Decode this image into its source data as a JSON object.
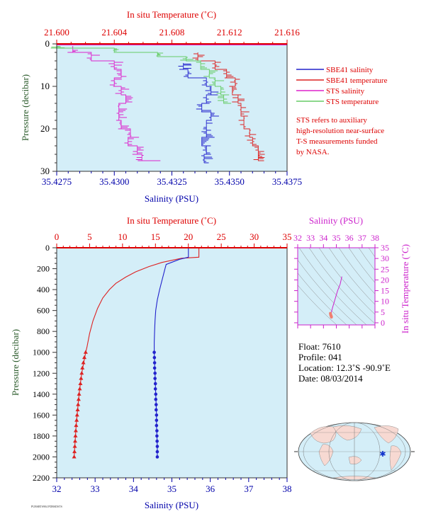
{
  "colors": {
    "plot_bg": "#d4eef8",
    "sbe_salinity": "#2222cc",
    "sbe_temperature": "#dd2222",
    "sts_salinity": "#dd22cc",
    "sts_temperature": "#66cc66",
    "temp_axis": "#dd0000",
    "sal_axis": "#0000aa",
    "pressure_axis": "#2a5a2a",
    "ts_axis": "#cc22cc",
    "annotation": "#dd0000"
  },
  "top_chart": {
    "top_axis_label": "In situ Temperature (˚C)",
    "bottom_axis_label": "Salinity (PSU)",
    "left_axis_label": "Pressure (decibar)",
    "temp_ticks": [
      "21.600",
      "21.604",
      "21.608",
      "21.612",
      "21.616"
    ],
    "sal_ticks": [
      "35.4275",
      "35.4300",
      "35.4325",
      "35.4350",
      "35.4375"
    ],
    "pressure_ticks": [
      "0",
      "10",
      "20",
      "30"
    ],
    "legend": [
      {
        "label": "SBE41 salinity",
        "color": "#2222cc"
      },
      {
        "label": "SBE41 temperature",
        "color": "#dd2222"
      },
      {
        "label": "STS salinity",
        "color": "#dd22cc"
      },
      {
        "label": "STS temperature",
        "color": "#66cc66"
      }
    ],
    "note": [
      "STS refers to auxiliary",
      "high-resolution near-surface",
      "T-S measurements funded",
      "by NASA."
    ]
  },
  "main_chart": {
    "top_axis_label": "In situ Temperature (˚C)",
    "bottom_axis_label": "Salinity (PSU)",
    "left_axis_label": "Pressure (decibar)",
    "temp_ticks": [
      "0",
      "5",
      "10",
      "15",
      "20",
      "25",
      "30",
      "35"
    ],
    "sal_ticks": [
      "32",
      "33",
      "34",
      "35",
      "36",
      "37",
      "38"
    ],
    "pressure_ticks": [
      "0",
      "200",
      "400",
      "600",
      "800",
      "1000",
      "1200",
      "1400",
      "1600",
      "1800",
      "2000",
      "2200"
    ],
    "footer_code": "PUBSRTS904 PDBSDSTS"
  },
  "ts_chart": {
    "top_axis_label": "Salinity (PSU)",
    "right_axis_label": "In situ Temperature (˚C)",
    "sal_ticks": [
      "32",
      "33",
      "34",
      "35",
      "36",
      "37",
      "38"
    ],
    "temp_ticks": [
      "0",
      "5",
      "10",
      "15",
      "20",
      "25",
      "30",
      "35"
    ]
  },
  "info": {
    "float": "Float:  7610",
    "profile": "Profile:  041",
    "location": "Location:  12.3˚S  -90.9˚E",
    "date": "Date:  08/03/2014"
  },
  "chart_data": [
    {
      "type": "line",
      "title": "",
      "xlabel": "Salinity (PSU)",
      "x2label": "In situ Temperature (˚C)",
      "ylabel": "Pressure (decibar)",
      "xlim": [
        35.4275,
        35.4375
      ],
      "x2lim": [
        21.6,
        21.616
      ],
      "ylim": [
        30,
        0
      ],
      "legend": "right",
      "series": [
        {
          "name": "SBE41 salinity",
          "axis": "salinity",
          "points": [
            [
              35.433,
              4.5
            ],
            [
              35.4332,
              6
            ],
            [
              35.434,
              8
            ],
            [
              35.4342,
              10
            ],
            [
              35.434,
              12
            ],
            [
              35.4338,
              14
            ],
            [
              35.4342,
              16
            ],
            [
              35.434,
              18
            ],
            [
              35.434,
              20
            ],
            [
              35.4338,
              22
            ],
            [
              35.434,
              24
            ],
            [
              35.4339,
              26
            ],
            [
              35.4341,
              28
            ]
          ]
        },
        {
          "name": "SBE41 temperature",
          "axis": "temperature",
          "points": [
            [
              21.6098,
              2
            ],
            [
              21.611,
              4
            ],
            [
              21.6118,
              6
            ],
            [
              21.6124,
              8
            ],
            [
              21.6122,
              10
            ],
            [
              21.6126,
              12
            ],
            [
              21.6128,
              14
            ],
            [
              21.613,
              17
            ],
            [
              21.6134,
              20
            ],
            [
              21.6136,
              22
            ],
            [
              21.614,
              24
            ],
            [
              21.614,
              26
            ],
            [
              21.6144,
              27.5
            ]
          ]
        },
        {
          "name": "STS salinity",
          "axis": "salinity",
          "points": [
            [
              35.4282,
              0.5
            ],
            [
              35.429,
              2
            ],
            [
              35.43,
              4
            ],
            [
              35.4303,
              6
            ],
            [
              35.43,
              8
            ],
            [
              35.4303,
              10
            ],
            [
              35.4305,
              12
            ],
            [
              35.4302,
              14
            ],
            [
              35.4302,
              16
            ],
            [
              35.4303,
              18
            ],
            [
              35.4307,
              20
            ],
            [
              35.4306,
              22
            ],
            [
              35.431,
              24
            ],
            [
              35.4312,
              26
            ],
            [
              35.432,
              27.5
            ]
          ]
        },
        {
          "name": "STS temperature",
          "axis": "temperature",
          "points": [
            [
              21.6,
              0.5
            ],
            [
              21.604,
              1
            ],
            [
              21.607,
              2
            ],
            [
              21.609,
              3
            ],
            [
              21.61,
              4
            ],
            [
              21.6106,
              6
            ],
            [
              21.611,
              8
            ],
            [
              21.6114,
              10
            ],
            [
              21.6116,
              12
            ],
            [
              21.6118,
              14
            ]
          ]
        }
      ]
    },
    {
      "type": "line",
      "title": "",
      "xlabel": "Salinity (PSU)",
      "x2label": "In situ Temperature (˚C)",
      "ylabel": "Pressure (decibar)",
      "xlim": [
        32,
        38
      ],
      "x2lim": [
        0,
        35
      ],
      "ylim": [
        2200,
        0
      ],
      "series": [
        {
          "axis": "temperature",
          "marker": "triangle",
          "points": [
            [
              21.6,
              0
            ],
            [
              21.6,
              90
            ],
            [
              19,
              100
            ],
            [
              16,
              140
            ],
            [
              14,
              180
            ],
            [
              12,
              230
            ],
            [
              10.5,
              280
            ],
            [
              9,
              340
            ],
            [
              8,
              400
            ],
            [
              7,
              480
            ],
            [
              6.2,
              580
            ],
            [
              5.5,
              700
            ],
            [
              5,
              820
            ],
            [
              4.6,
              950
            ],
            [
              4.4,
              1000
            ],
            [
              4.1,
              1100
            ],
            [
              3.8,
              1200
            ],
            [
              3.6,
              1300
            ],
            [
              3.4,
              1400
            ],
            [
              3.25,
              1500
            ],
            [
              3.1,
              1600
            ],
            [
              2.95,
              1700
            ],
            [
              2.85,
              1800
            ],
            [
              2.75,
              1900
            ],
            [
              2.65,
              2000
            ]
          ],
          "marker_points": [
            [
              4.4,
              1000
            ],
            [
              4.2,
              1050
            ],
            [
              4.05,
              1100
            ],
            [
              3.9,
              1150
            ],
            [
              3.8,
              1200
            ],
            [
              3.7,
              1250
            ],
            [
              3.6,
              1300
            ],
            [
              3.5,
              1350
            ],
            [
              3.4,
              1400
            ],
            [
              3.33,
              1450
            ],
            [
              3.25,
              1500
            ],
            [
              3.18,
              1550
            ],
            [
              3.1,
              1600
            ],
            [
              3.03,
              1650
            ],
            [
              2.95,
              1700
            ],
            [
              2.9,
              1750
            ],
            [
              2.85,
              1800
            ],
            [
              2.8,
              1850
            ],
            [
              2.75,
              1900
            ],
            [
              2.7,
              1950
            ],
            [
              2.65,
              2000
            ]
          ]
        },
        {
          "axis": "salinity",
          "marker": "circle",
          "points": [
            [
              35.43,
              0
            ],
            [
              35.43,
              90
            ],
            [
              35.2,
              110
            ],
            [
              34.85,
              160
            ],
            [
              34.82,
              200
            ],
            [
              34.75,
              300
            ],
            [
              34.68,
              400
            ],
            [
              34.62,
              500
            ],
            [
              34.58,
              600
            ],
            [
              34.56,
              700
            ],
            [
              34.55,
              800
            ],
            [
              34.54,
              900
            ],
            [
              34.54,
              1000
            ],
            [
              34.55,
              1100
            ],
            [
              34.56,
              1200
            ],
            [
              34.57,
              1300
            ],
            [
              34.58,
              1400
            ],
            [
              34.59,
              1500
            ],
            [
              34.6,
              1600
            ],
            [
              34.6,
              1700
            ],
            [
              34.61,
              1800
            ],
            [
              34.62,
              1900
            ],
            [
              34.62,
              2000
            ]
          ],
          "marker_points": [
            [
              34.54,
              1000
            ],
            [
              34.545,
              1050
            ],
            [
              34.55,
              1100
            ],
            [
              34.55,
              1150
            ],
            [
              34.56,
              1200
            ],
            [
              34.56,
              1250
            ],
            [
              34.57,
              1300
            ],
            [
              34.57,
              1350
            ],
            [
              34.58,
              1400
            ],
            [
              34.58,
              1450
            ],
            [
              34.59,
              1500
            ],
            [
              34.59,
              1550
            ],
            [
              34.6,
              1600
            ],
            [
              34.6,
              1650
            ],
            [
              34.6,
              1700
            ],
            [
              34.61,
              1750
            ],
            [
              34.61,
              1800
            ],
            [
              34.615,
              1850
            ],
            [
              34.62,
              1900
            ],
            [
              34.62,
              1950
            ],
            [
              34.62,
              2000
            ]
          ]
        }
      ]
    },
    {
      "type": "scatter",
      "title": "",
      "xlabel": "Salinity (PSU)",
      "ylabel": "In situ Temperature (˚C)",
      "xlim": [
        32,
        38
      ],
      "ylim": [
        -1,
        35
      ],
      "series": [
        {
          "points": [
            [
              35.43,
              21.6
            ],
            [
              35.3,
              18
            ],
            [
              35.1,
              15
            ],
            [
              34.95,
              12
            ],
            [
              34.8,
              9
            ],
            [
              34.7,
              7
            ],
            [
              34.62,
              5
            ],
            [
              34.58,
              4
            ],
            [
              34.55,
              3.5
            ],
            [
              34.6,
              3
            ],
            [
              34.62,
              2.7
            ]
          ],
          "marker_points": [
            [
              34.54,
              4.4
            ],
            [
              34.55,
              4.0
            ],
            [
              34.56,
              3.8
            ],
            [
              34.57,
              3.6
            ],
            [
              34.58,
              3.4
            ],
            [
              34.59,
              3.25
            ],
            [
              34.6,
              3.1
            ],
            [
              34.61,
              2.95
            ],
            [
              34.62,
              2.8
            ],
            [
              34.62,
              2.65
            ]
          ]
        }
      ]
    }
  ]
}
